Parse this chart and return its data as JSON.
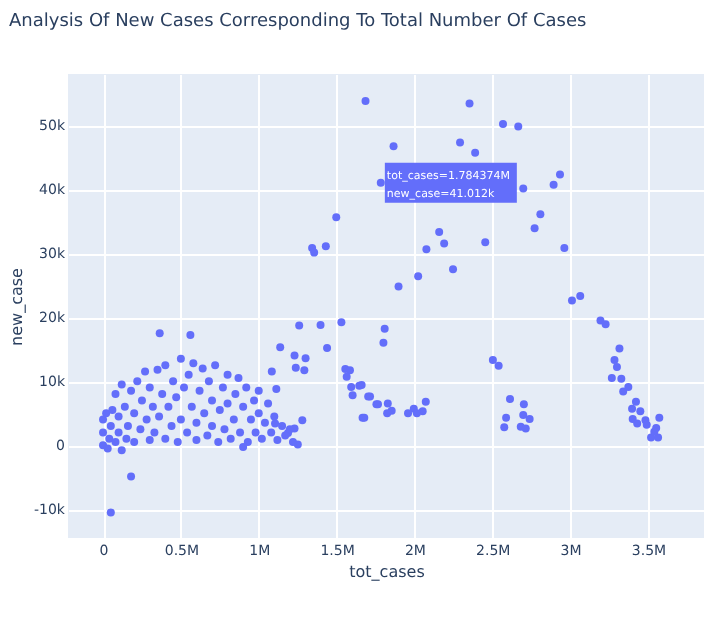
{
  "chart_data": {
    "type": "scatter",
    "title": "Analysis Of New Cases Corresponding To Total Number Of Cases",
    "xlabel": "tot_cases",
    "ylabel": "new_case",
    "xlim": [
      -225000,
      3860000
    ],
    "ylim": [
      -14500,
      58000
    ],
    "xticks": [
      {
        "value": 0,
        "label": "0"
      },
      {
        "value": 500000,
        "label": "0.5M"
      },
      {
        "value": 1000000,
        "label": "1M"
      },
      {
        "value": 1500000,
        "label": "1.5M"
      },
      {
        "value": 2000000,
        "label": "2M"
      },
      {
        "value": 2500000,
        "label": "2.5M"
      },
      {
        "value": 3000000,
        "label": "3M"
      },
      {
        "value": 3500000,
        "label": "3.5M"
      }
    ],
    "yticks": [
      {
        "value": -10000,
        "label": "-10k"
      },
      {
        "value": 0,
        "label": "0"
      },
      {
        "value": 10000,
        "label": "10k"
      },
      {
        "value": 20000,
        "label": "20k"
      },
      {
        "value": 30000,
        "label": "30k"
      },
      {
        "value": 40000,
        "label": "40k"
      },
      {
        "value": 50000,
        "label": "50k"
      }
    ],
    "grid": true,
    "marker": "circle",
    "annotations": [
      {
        "text": "tot_cases=1.784374M\nnew_case=41.012k",
        "x": 1784374,
        "y": 41012
      }
    ],
    "series": [
      {
        "color": "#636efa",
        "x": [
          1686000,
          2354000,
          2569000,
          2667000,
          1866000,
          2293000,
          2390000,
          1784000,
          2699000,
          2935000,
          2894000,
          2809000,
          2772000,
          2159000,
          2191000,
          2077000,
          2455000,
          2963000,
          2248000,
          2024000,
          1898000,
          3012000,
          3065000,
          1809000,
          1801000,
          3195000,
          3228000,
          3317000,
          3285000,
          3301000,
          3329000,
          3268000,
          2504000,
          2541000,
          3374000,
          3341000,
          3423000,
          3398000,
          3451000,
          3402000,
          3431000,
          3484000,
          3553000,
          3573000,
          3520000,
          3565000,
          3541000,
          3492000,
          2614000,
          2703000,
          2589000,
          2699000,
          2740000,
          2683000,
          2715000,
          2577000,
          2073000,
          2053000,
          1996000,
          2016000,
          1959000,
          1829000,
          1854000,
          1825000,
          1756000,
          1703000,
          1646000,
          1667000,
          1498000,
          1431000,
          1343000,
          1356000,
          1531000,
          1397000,
          1260000,
          1439000,
          1138000,
          1230000,
          1301000,
          1238000,
          1293000,
          1556000,
          1586000,
          1565000,
          1594000,
          1661000,
          1603000,
          1715000,
          1766000,
          1678000,
          1084000,
          1113000,
          364000,
          561000,
          180000,
          50000,
          1251000,
          1188000,
          1105000,
          1280000,
          1230000,
          0,
          0,
          0,
          20000,
          40000,
          50000,
          60000,
          80000,
          80000,
          100000,
          100000,
          120000,
          120000,
          140000,
          150000,
          160000,
          180000,
          200000,
          200000,
          220000,
          240000,
          250000,
          270000,
          280000,
          300000,
          300000,
          320000,
          330000,
          350000,
          360000,
          380000,
          400000,
          400000,
          420000,
          440000,
          450000,
          470000,
          480000,
          500000,
          500000,
          520000,
          540000,
          550000,
          570000,
          580000,
          600000,
          600000,
          620000,
          640000,
          650000,
          670000,
          680000,
          700000,
          700000,
          720000,
          740000,
          750000,
          770000,
          780000,
          800000,
          800000,
          820000,
          840000,
          850000,
          870000,
          880000,
          900000,
          920000,
          930000,
          950000,
          970000,
          980000,
          1000000,
          1000000,
          1020000,
          1040000,
          1060000,
          1080000,
          1100000,
          1120000,
          1150000,
          1170000,
          1200000,
          1220000,
          30000,
          900000
        ],
        "values": [
          53800,
          53400,
          50200,
          49800,
          46700,
          47300,
          45700,
          41000,
          40100,
          42300,
          40700,
          36100,
          33900,
          33300,
          31500,
          30600,
          31700,
          30800,
          27500,
          26400,
          24800,
          22600,
          23300,
          18200,
          16000,
          19500,
          18900,
          15100,
          13300,
          12200,
          10400,
          10500,
          13300,
          12400,
          9100,
          8400,
          6800,
          5700,
          5300,
          4100,
          3400,
          3900,
          2700,
          4300,
          1200,
          1200,
          2100,
          3200,
          7200,
          6400,
          4300,
          4700,
          4100,
          2900,
          2600,
          2800,
          6800,
          5300,
          5700,
          5000,
          5000,
          6500,
          5400,
          5000,
          6400,
          7600,
          9300,
          4300,
          35600,
          31100,
          30800,
          30100,
          19200,
          18800,
          18700,
          15200,
          15300,
          14000,
          13600,
          12100,
          11700,
          11900,
          11700,
          10700,
          9100,
          9400,
          7800,
          7600,
          6400,
          4300,
          11500,
          8800,
          17500,
          17200,
          -4900,
          -10500,
          100,
          1900,
          3400,
          3900,
          2600,
          0,
          2000,
          4000,
          5000,
          1000,
          3000,
          5500,
          500,
          8000,
          2000,
          4500,
          -800,
          9500,
          6000,
          1000,
          3000,
          8500,
          500,
          5000,
          10000,
          2500,
          7000,
          11500,
          4000,
          800,
          9000,
          6000,
          2000,
          11800,
          4500,
          8000,
          1000,
          12500,
          6000,
          3000,
          10000,
          7500,
          500,
          13500,
          4000,
          9000,
          2000,
          11000,
          6000,
          12800,
          800,
          3500,
          8500,
          12000,
          5000,
          1500,
          10000,
          3000,
          7000,
          12500,
          500,
          5500,
          9000,
          2500,
          11000,
          6500,
          1000,
          4000,
          8000,
          10500,
          2000,
          6000,
          9000,
          500,
          4000,
          7000,
          2000,
          5000,
          8500,
          1000,
          3500,
          6500,
          2000,
          4500,
          800,
          3000,
          1500,
          2500,
          500,
          -500,
          -300
        ]
      }
    ]
  }
}
